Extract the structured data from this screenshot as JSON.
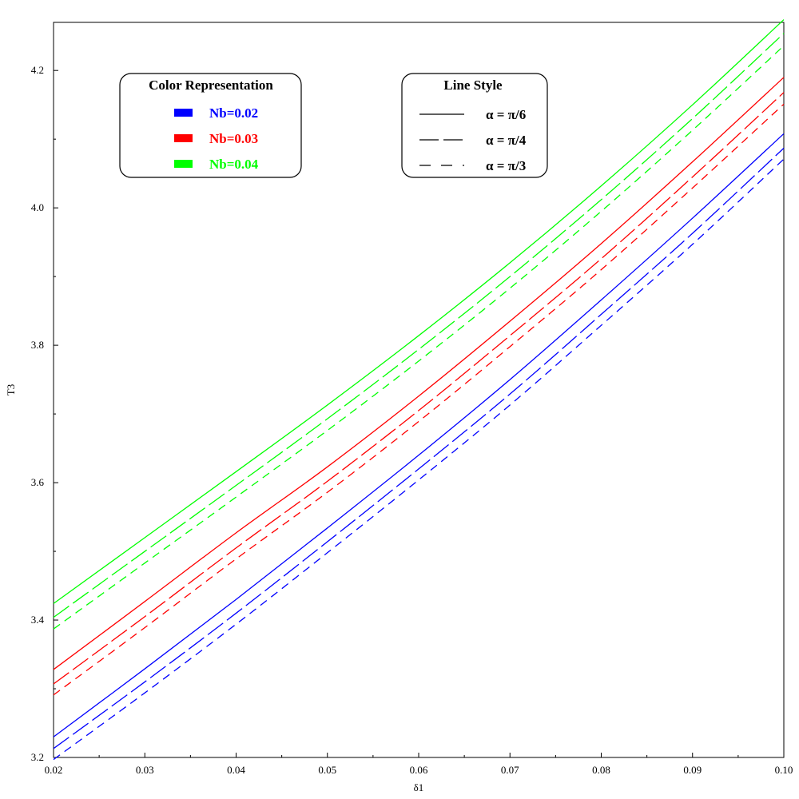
{
  "chart_data": {
    "type": "line",
    "xlabel": "δ1",
    "ylabel": "Τ3",
    "xlim": [
      0.02,
      0.1
    ],
    "ylim": [
      3.2,
      4.27
    ],
    "x_ticks": [
      "0.02",
      "0.03",
      "0.04",
      "0.05",
      "0.06",
      "0.07",
      "0.08",
      "0.09",
      "0.10"
    ],
    "y_ticks": [
      "3.2",
      "3.4",
      "3.6",
      "3.8",
      "4.0",
      "4.2"
    ],
    "x": [
      0.02,
      0.03,
      0.04,
      0.05,
      0.06,
      0.07,
      0.08,
      0.09,
      0.1
    ],
    "series": [
      {
        "color": "#0000ff",
        "dash": "solid",
        "values": [
          3.23,
          3.329,
          3.43,
          3.534,
          3.64,
          3.75,
          3.866,
          3.985,
          4.108
        ]
      },
      {
        "color": "#0000ff",
        "dash": "long",
        "values": [
          3.213,
          3.31,
          3.41,
          3.514,
          3.62,
          3.729,
          3.845,
          3.963,
          4.087
        ]
      },
      {
        "color": "#0000ff",
        "dash": "short",
        "values": [
          3.197,
          3.294,
          3.394,
          3.498,
          3.604,
          3.713,
          3.829,
          3.947,
          4.071
        ]
      },
      {
        "color": "#ff0000",
        "dash": "solid",
        "values": [
          3.328,
          3.427,
          3.527,
          3.623,
          3.726,
          3.835,
          3.948,
          4.067,
          4.19
        ]
      },
      {
        "color": "#ff0000",
        "dash": "long",
        "values": [
          3.307,
          3.405,
          3.505,
          3.602,
          3.705,
          3.814,
          3.926,
          4.045,
          4.168
        ]
      },
      {
        "color": "#ff0000",
        "dash": "short",
        "values": [
          3.291,
          3.389,
          3.489,
          3.586,
          3.689,
          3.798,
          3.91,
          4.029,
          4.151
        ]
      },
      {
        "color": "#00ff00",
        "dash": "solid",
        "values": [
          3.424,
          3.52,
          3.616,
          3.713,
          3.814,
          3.92,
          4.032,
          4.15,
          4.274
        ]
      },
      {
        "color": "#00ff00",
        "dash": "long",
        "values": [
          3.404,
          3.5,
          3.596,
          3.693,
          3.794,
          3.9,
          4.012,
          4.13,
          4.254
        ]
      },
      {
        "color": "#00ff00",
        "dash": "short",
        "values": [
          3.387,
          3.483,
          3.579,
          3.676,
          3.777,
          3.883,
          3.995,
          4.113,
          4.236
        ]
      }
    ],
    "legend_color": {
      "title": "Color Representation",
      "entries": [
        {
          "label": "Nb=0.02",
          "color": "#0000ff"
        },
        {
          "label": "Nb=0.03",
          "color": "#ff0000"
        },
        {
          "label": "Nb=0.04",
          "color": "#00ff00"
        }
      ]
    },
    "legend_style": {
      "title": "Line Style",
      "entries": [
        {
          "label": "α = π/6",
          "dash": "solid"
        },
        {
          "label": "α = π/4",
          "dash": "long"
        },
        {
          "label": "α = π/3",
          "dash": "short"
        }
      ]
    },
    "legend_placement": "top-left",
    "grid": false
  }
}
